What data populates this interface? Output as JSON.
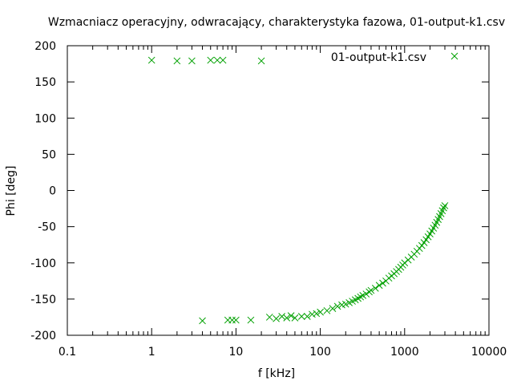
{
  "chart_data": {
    "type": "scatter",
    "title": "Wzmacniacz operacyjny, odwracający, charakterystyka fazowa, 01-output-k1.csv",
    "xlabel": "f [kHz]",
    "ylabel": "Phi [deg]",
    "xscale": "log",
    "xlim": [
      0.1,
      10000
    ],
    "ylim": [
      -200,
      200
    ],
    "x_ticks": [
      0.1,
      1,
      10,
      100,
      1000,
      10000
    ],
    "x_tick_labels": [
      "0.1",
      "1",
      "10",
      "100",
      "1000",
      "10000"
    ],
    "y_ticks": [
      -200,
      -150,
      -100,
      -50,
      0,
      50,
      100,
      150,
      200
    ],
    "y_tick_labels": [
      "-200",
      "-150",
      "-100",
      "-50",
      "0",
      "50",
      "100",
      "150",
      "200"
    ],
    "grid": false,
    "legend": {
      "position": "top-right"
    },
    "series": [
      {
        "name": "01-output-k1.csv",
        "color": "#00a000",
        "marker": "x",
        "points": [
          [
            1,
            180
          ],
          [
            2,
            179
          ],
          [
            3,
            179
          ],
          [
            5,
            180
          ],
          [
            6,
            180
          ],
          [
            7,
            180
          ],
          [
            20,
            179
          ],
          [
            4,
            -180
          ],
          [
            8,
            -179
          ],
          [
            9,
            -179
          ],
          [
            10,
            -179
          ],
          [
            15,
            -179
          ],
          [
            25,
            -175
          ],
          [
            30,
            -177
          ],
          [
            35,
            -174
          ],
          [
            40,
            -176
          ],
          [
            45,
            -173
          ],
          [
            50,
            -176
          ],
          [
            60,
            -174
          ],
          [
            70,
            -174
          ],
          [
            80,
            -171
          ],
          [
            90,
            -170
          ],
          [
            100,
            -168
          ],
          [
            120,
            -166
          ],
          [
            140,
            -163
          ],
          [
            160,
            -160
          ],
          [
            180,
            -158
          ],
          [
            200,
            -157
          ],
          [
            220,
            -155
          ],
          [
            240,
            -153
          ],
          [
            260,
            -151
          ],
          [
            280,
            -149
          ],
          [
            300,
            -147
          ],
          [
            320,
            -145
          ],
          [
            350,
            -143
          ],
          [
            380,
            -140
          ],
          [
            400,
            -138
          ],
          [
            450,
            -135
          ],
          [
            500,
            -131
          ],
          [
            550,
            -128
          ],
          [
            600,
            -125
          ],
          [
            650,
            -121
          ],
          [
            700,
            -118
          ],
          [
            750,
            -115
          ],
          [
            800,
            -112
          ],
          [
            850,
            -109
          ],
          [
            900,
            -106
          ],
          [
            950,
            -103
          ],
          [
            1000,
            -100
          ],
          [
            1100,
            -96
          ],
          [
            1200,
            -92
          ],
          [
            1300,
            -88
          ],
          [
            1400,
            -84
          ],
          [
            1500,
            -80
          ],
          [
            1600,
            -76
          ],
          [
            1700,
            -72
          ],
          [
            1800,
            -68
          ],
          [
            1900,
            -64
          ],
          [
            2000,
            -60
          ],
          [
            2100,
            -56
          ],
          [
            2200,
            -52
          ],
          [
            2300,
            -48
          ],
          [
            2400,
            -44
          ],
          [
            2500,
            -40
          ],
          [
            2600,
            -36
          ],
          [
            2700,
            -32
          ],
          [
            2800,
            -28
          ],
          [
            2900,
            -24
          ],
          [
            3000,
            -21
          ]
        ]
      }
    ]
  }
}
